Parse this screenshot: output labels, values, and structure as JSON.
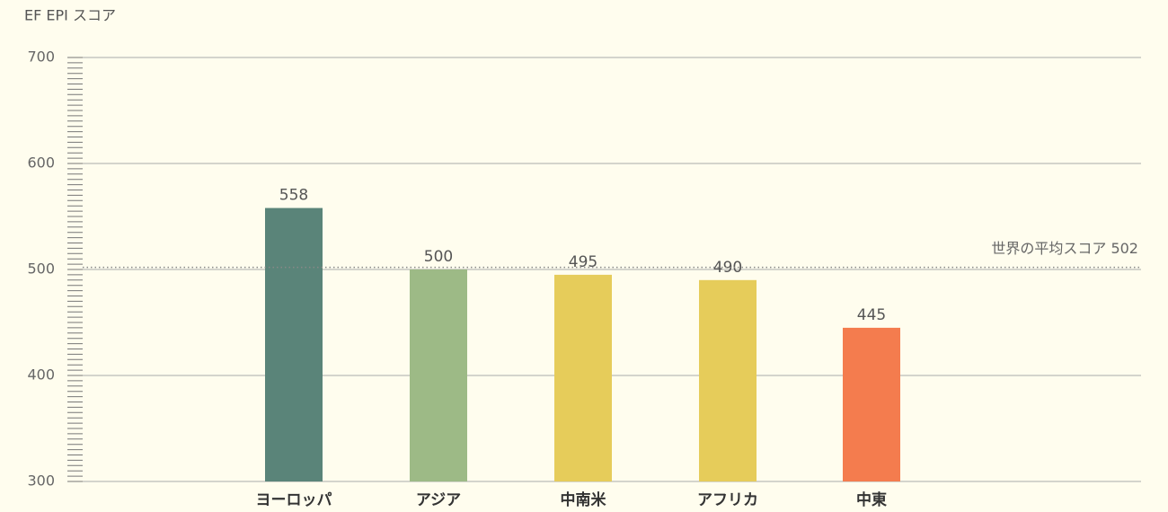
{
  "chart_data": {
    "type": "bar",
    "y_axis_label": "EF EPI スコア",
    "categories": [
      "ヨーロッパ",
      "アジア",
      "中南米",
      "アフリカ",
      "中東"
    ],
    "values": [
      558,
      500,
      495,
      490,
      445
    ],
    "colors": [
      "#5a8479",
      "#9dba86",
      "#e6cc5a",
      "#e6cc5a",
      "#f47c4e"
    ],
    "ylim": [
      300,
      700
    ],
    "yticks": [
      300,
      400,
      500,
      600,
      700
    ],
    "grid": true,
    "reference_line": {
      "value": 502,
      "label": "世界の平均スコア 502"
    }
  }
}
